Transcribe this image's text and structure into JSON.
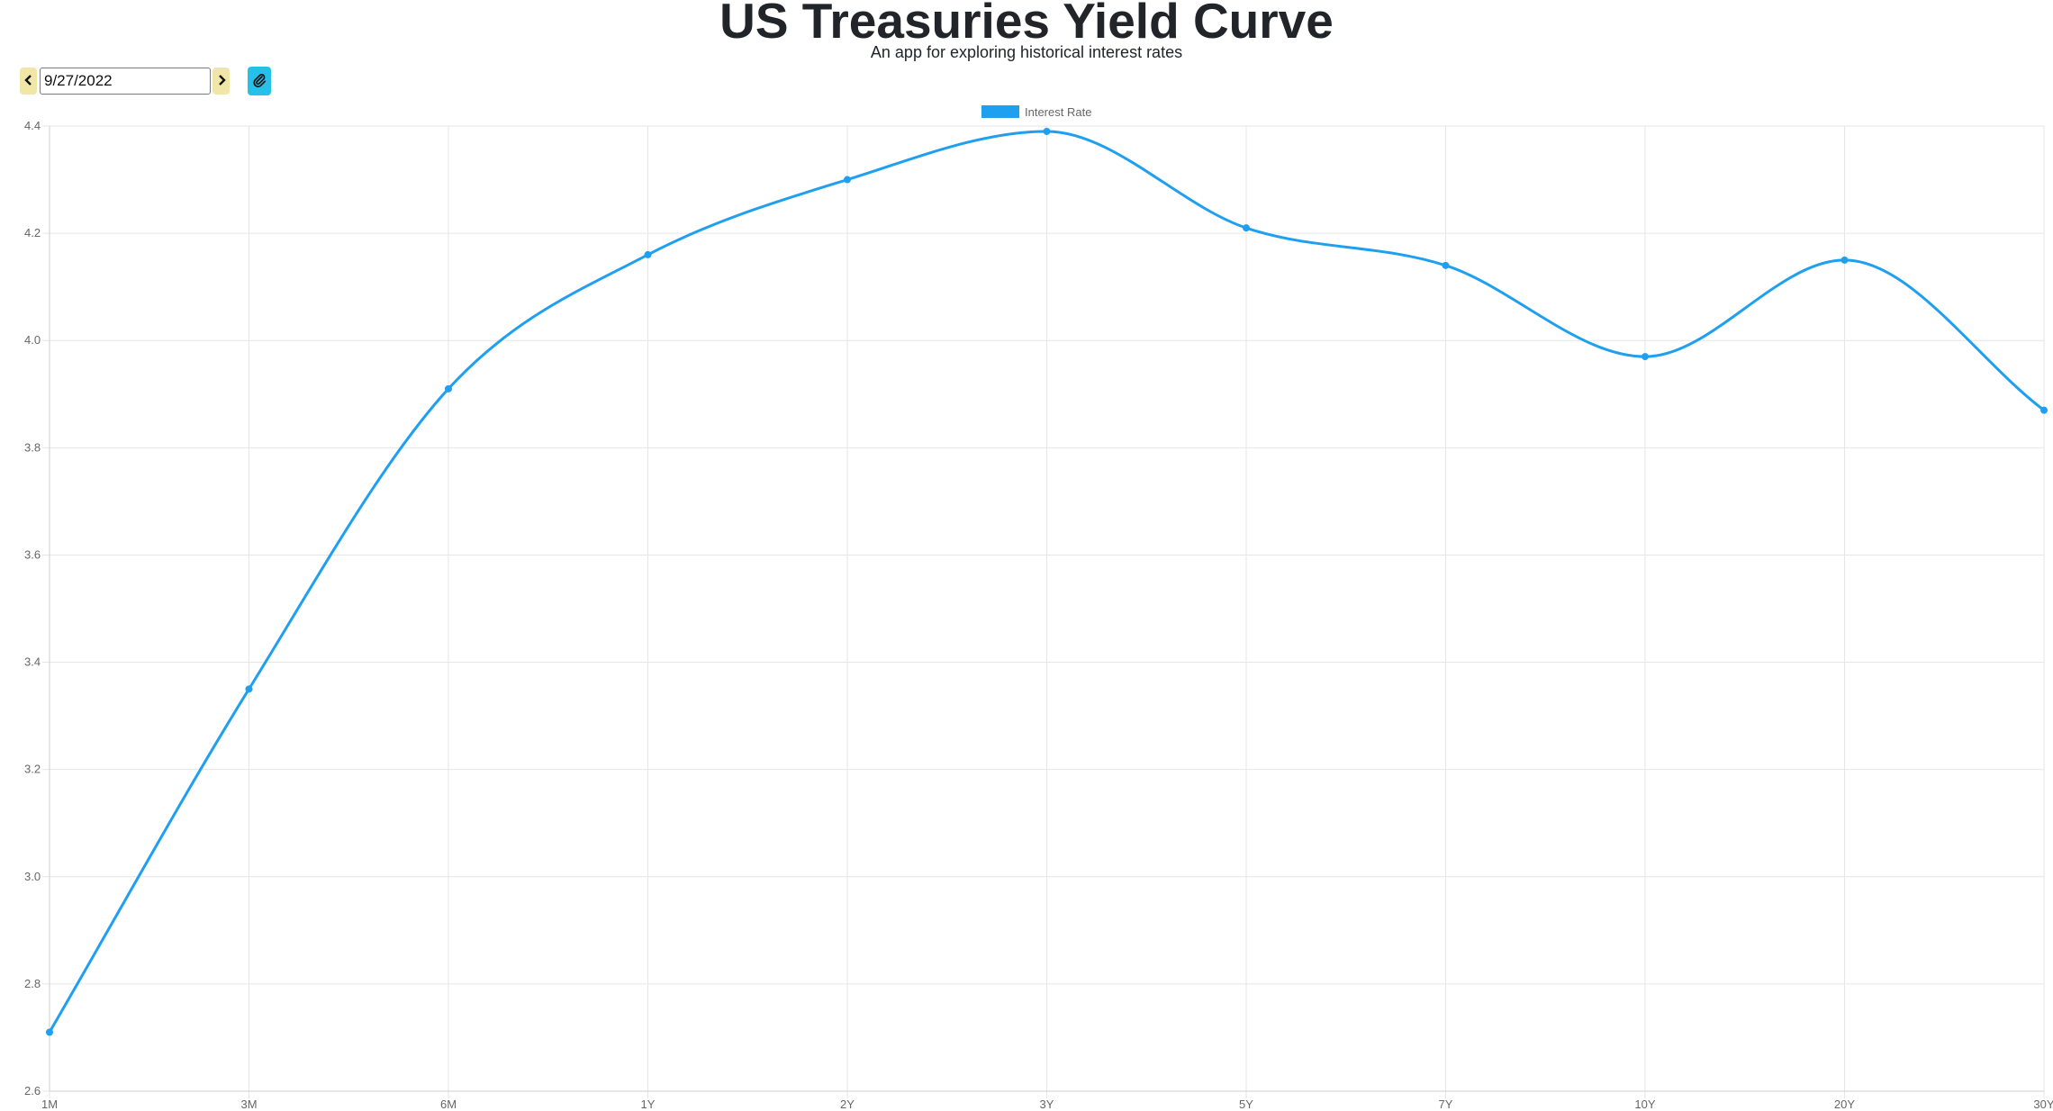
{
  "header": {
    "title": "US Treasuries Yield Curve",
    "subtitle": "An app for exploring historical interest rates"
  },
  "controls": {
    "date_value": "9/27/2022",
    "prev_icon": "chevron-left-icon",
    "next_icon": "chevron-right-icon",
    "link_icon": "paperclip-icon"
  },
  "colors": {
    "line": "#1f9ff0",
    "nav_button_bg": "#f0e6a8",
    "link_button_bg": "#27c0e8",
    "grid": "#e6e6e6",
    "tick_text": "#666666"
  },
  "chart_data": {
    "type": "line",
    "title": "",
    "xlabel": "",
    "ylabel": "",
    "categories": [
      "1M",
      "3M",
      "6M",
      "1Y",
      "2Y",
      "3Y",
      "5Y",
      "7Y",
      "10Y",
      "20Y",
      "30Y"
    ],
    "series": [
      {
        "name": "Interest Rate",
        "values": [
          2.71,
          3.35,
          3.91,
          4.16,
          4.3,
          4.39,
          4.21,
          4.14,
          3.97,
          4.15,
          3.87
        ]
      }
    ],
    "ylim": [
      2.6,
      4.4
    ],
    "yticks": [
      "2.6",
      "2.8",
      "3.0",
      "3.2",
      "3.4",
      "3.6",
      "3.8",
      "4.0",
      "4.2",
      "4.4"
    ],
    "grid": true,
    "legend_position": "top-center",
    "smooth": true
  }
}
